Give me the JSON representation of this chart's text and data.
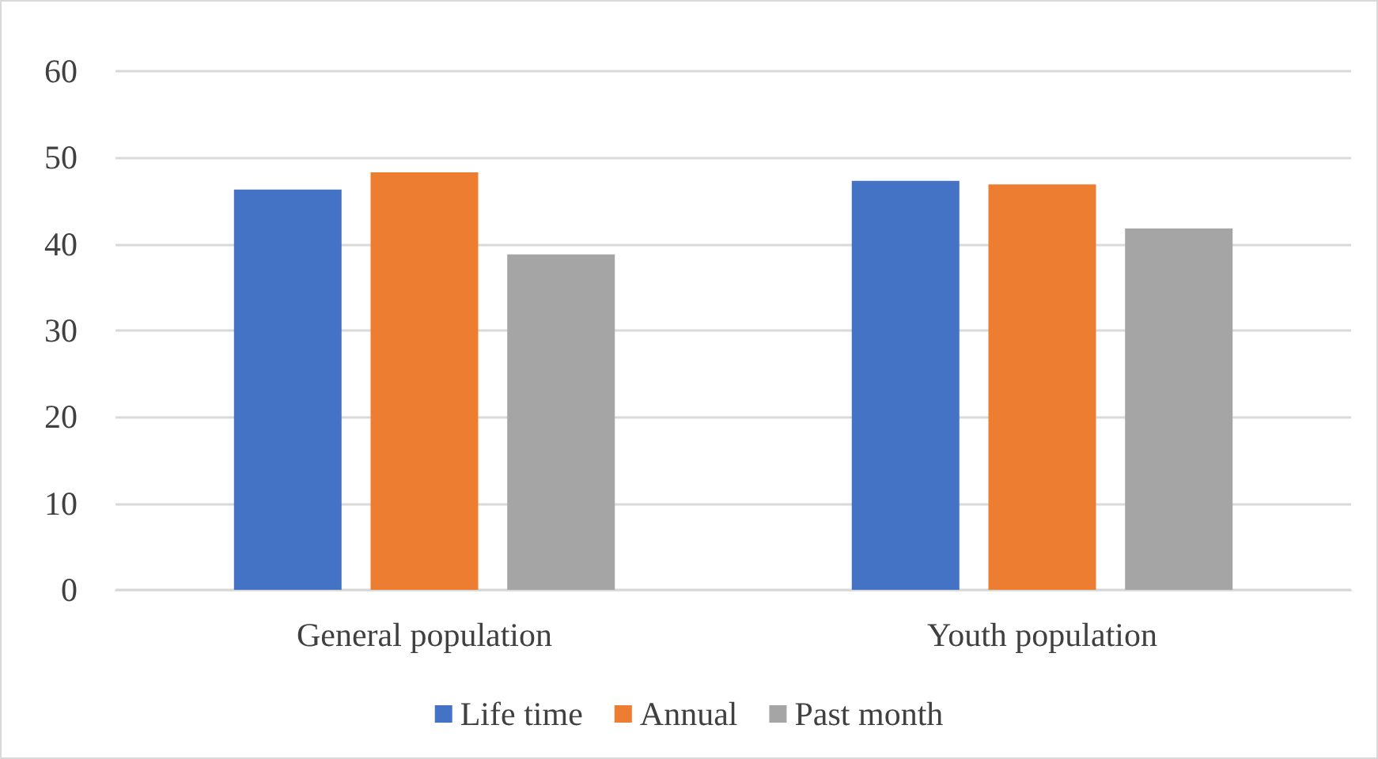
{
  "chart_data": {
    "type": "bar",
    "categories": [
      "General population",
      "Youth population"
    ],
    "series": [
      {
        "name": "Life time",
        "color": "#4472c4",
        "values": [
          46.3,
          47.3
        ]
      },
      {
        "name": "Annual",
        "color": "#ed7d31",
        "values": [
          48.3,
          46.9
        ]
      },
      {
        "name": "Past month",
        "color": "#a5a5a5",
        "values": [
          38.8,
          41.8
        ]
      }
    ],
    "ylim": [
      0,
      60
    ],
    "yticks": [
      0,
      10,
      20,
      30,
      40,
      50,
      60
    ],
    "grid": "y",
    "legend": "bottom"
  }
}
